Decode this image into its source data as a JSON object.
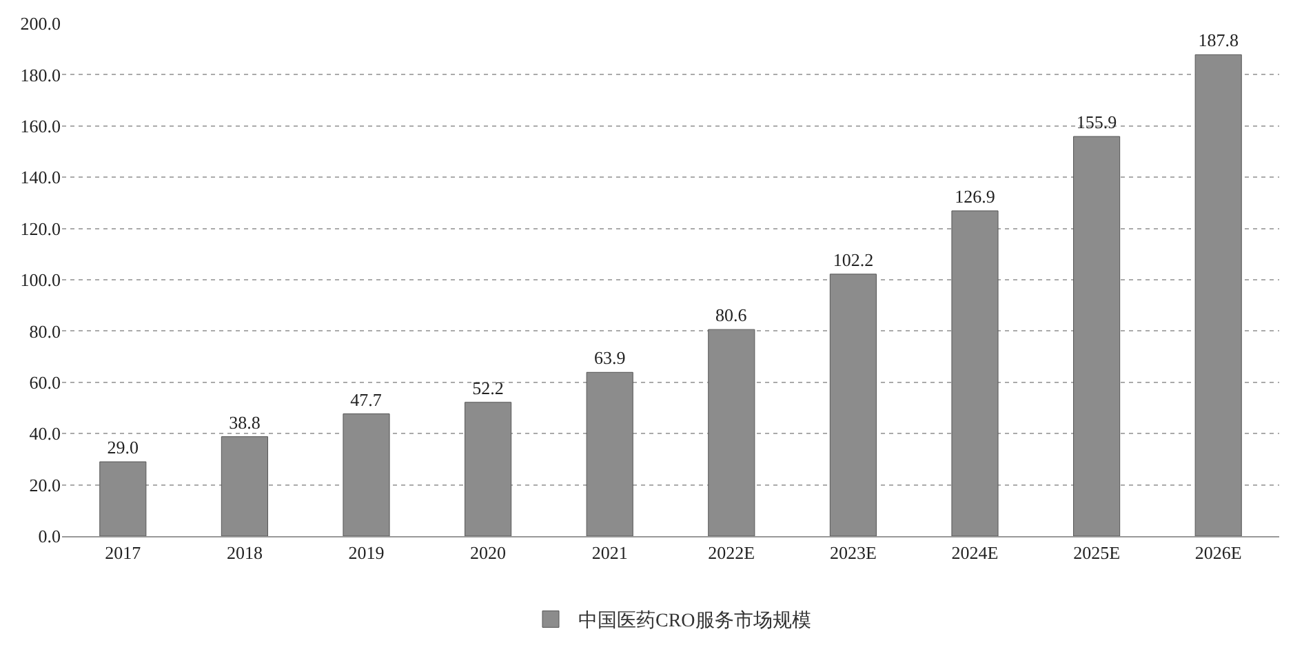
{
  "chart_data": {
    "type": "bar",
    "categories": [
      "2017",
      "2018",
      "2019",
      "2020",
      "2021",
      "2022E",
      "2023E",
      "2024E",
      "2025E",
      "2026E"
    ],
    "series": [
      {
        "name": "中国医药CRO服务市场规模",
        "color": "#8c8c8c",
        "values": [
          29.0,
          38.8,
          47.7,
          52.2,
          63.9,
          80.6,
          102.2,
          126.9,
          155.9,
          187.8
        ],
        "value_labels": [
          "29.0",
          "38.8",
          "47.7",
          "52.2",
          "63.9",
          "80.6",
          "102.2",
          "126.9",
          "155.9",
          "187.8"
        ]
      }
    ],
    "ylim": [
      0,
      200
    ],
    "yticks": [
      {
        "value": 0,
        "label": "0.0"
      },
      {
        "value": 20,
        "label": "20.0"
      },
      {
        "value": 40,
        "label": "40.0"
      },
      {
        "value": 60,
        "label": "60.0"
      },
      {
        "value": 80,
        "label": "80.0"
      },
      {
        "value": 100,
        "label": "100.0"
      },
      {
        "value": 120,
        "label": "120.0"
      },
      {
        "value": 140,
        "label": "140.0"
      },
      {
        "value": 160,
        "label": "160.0"
      },
      {
        "value": 180,
        "label": "180.0"
      },
      {
        "value": 200,
        "label": "200.0"
      }
    ],
    "grid": "y",
    "legend": "bottom"
  }
}
